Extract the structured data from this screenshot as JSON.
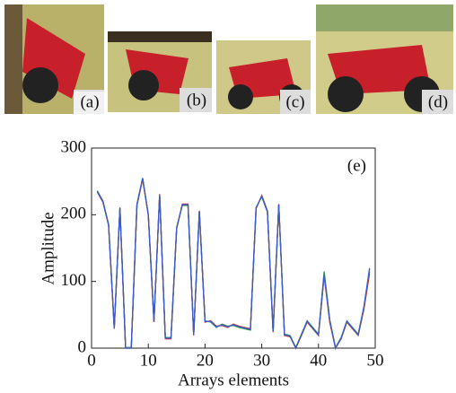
{
  "panels": [
    {
      "label": "(a)"
    },
    {
      "label": "(b)"
    },
    {
      "label": "(c)"
    },
    {
      "label": "(d)"
    }
  ],
  "chart_data": {
    "type": "line",
    "panel_label": "(e)",
    "x_label": "Arrays elements",
    "y_label": "Amplitude",
    "x": [
      1,
      2,
      3,
      4,
      5,
      6,
      7,
      8,
      9,
      10,
      11,
      12,
      13,
      14,
      15,
      16,
      17,
      18,
      19,
      20,
      21,
      22,
      23,
      24,
      25,
      26,
      27,
      28,
      29,
      30,
      31,
      32,
      33,
      34,
      35,
      36,
      37,
      38,
      39,
      40,
      41,
      42,
      43,
      44,
      45,
      46,
      47,
      48,
      49
    ],
    "series": [
      {
        "color": "#555555",
        "values": [
          235,
          220,
          185,
          30,
          210,
          0,
          0,
          215,
          255,
          200,
          40,
          230,
          15,
          15,
          180,
          215,
          215,
          20,
          205,
          40,
          40,
          32,
          35,
          32,
          35,
          32,
          30,
          28,
          210,
          228,
          205,
          25,
          215,
          20,
          18,
          0,
          20,
          40,
          30,
          20,
          112,
          40,
          0,
          15,
          40,
          30,
          20,
          60,
          115
        ]
      },
      {
        "color": "#2e9e3e",
        "values": [
          236,
          221,
          186,
          31,
          211,
          1,
          1,
          216,
          254,
          201,
          41,
          229,
          16,
          16,
          181,
          214,
          214,
          21,
          204,
          41,
          39,
          31,
          36,
          33,
          34,
          31,
          29,
          27,
          211,
          227,
          204,
          26,
          214,
          21,
          19,
          1,
          21,
          41,
          31,
          21,
          115,
          42,
          1,
          16,
          41,
          31,
          21,
          62,
          118
        ]
      },
      {
        "color": "#c0392b",
        "values": [
          234,
          219,
          184,
          29,
          209,
          0,
          0,
          214,
          253,
          199,
          39,
          231,
          14,
          14,
          179,
          216,
          216,
          19,
          206,
          39,
          41,
          33,
          34,
          31,
          36,
          33,
          31,
          29,
          209,
          229,
          206,
          24,
          216,
          19,
          17,
          0,
          19,
          39,
          29,
          19,
          108,
          38,
          0,
          14,
          39,
          29,
          19,
          58,
          112
        ]
      },
      {
        "color": "#3b5bd1",
        "values": [
          235,
          220,
          185,
          30,
          210,
          0,
          0,
          215,
          255,
          200,
          40,
          230,
          15,
          15,
          180,
          215,
          215,
          20,
          205,
          40,
          40,
          32,
          35,
          32,
          35,
          32,
          30,
          28,
          210,
          228,
          205,
          25,
          215,
          20,
          18,
          0,
          20,
          40,
          30,
          20,
          110,
          41,
          0,
          15,
          40,
          30,
          20,
          61,
          120
        ]
      }
    ],
    "xlim": [
      0,
      50
    ],
    "xticks": [
      0,
      10,
      20,
      30,
      40,
      50
    ],
    "ylim": [
      0,
      300
    ],
    "yticks": [
      0,
      100,
      200,
      300
    ]
  }
}
